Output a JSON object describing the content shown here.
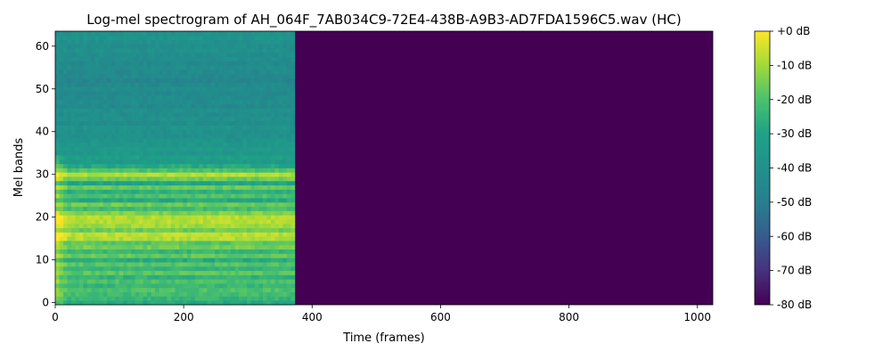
{
  "chart_data": {
    "type": "heatmap",
    "title": "Log-mel spectrogram of AH_064F_7AB034C9-72E4-438B-A9B3-AD7FDA1596C5.wav (HC)",
    "xlabel": "Time (frames)",
    "ylabel": "Mel bands",
    "xlim": [
      0,
      1024
    ],
    "ylim": [
      -0.5,
      63.5
    ],
    "x_ticks": [
      0,
      200,
      400,
      600,
      800,
      1000
    ],
    "x_tick_labels": [
      "0",
      "200",
      "400",
      "600",
      "800",
      "1000"
    ],
    "y_ticks": [
      0,
      10,
      20,
      30,
      40,
      50,
      60
    ],
    "y_tick_labels": [
      "0",
      "10",
      "20",
      "30",
      "40",
      "50",
      "60"
    ],
    "n_mel_bands": 64,
    "n_frames": 1024,
    "signal_end_frame": 373,
    "fill_value_db": -80,
    "colormap": "viridis",
    "colorbar": {
      "range_db": [
        -80,
        0
      ],
      "tick_values": [
        0,
        -10,
        -20,
        -30,
        -40,
        -50,
        -60,
        -70,
        -80
      ],
      "tick_labels": [
        "+0 dB",
        "-10 dB",
        "-20 dB",
        "-30 dB",
        "-40 dB",
        "-50 dB",
        "-60 dB",
        "-70 dB",
        "-80 dB"
      ]
    },
    "band_energy_profile_db": [
      -28,
      -24,
      -22,
      -20,
      -24,
      -20,
      -25,
      -18,
      -24,
      -19,
      -27,
      -17,
      -24,
      -15,
      -18,
      -8,
      -7,
      -16,
      -10,
      -8,
      -8,
      -14,
      -22,
      -16,
      -28,
      -20,
      -26,
      -17,
      -30,
      -16,
      -8,
      -20,
      -28,
      -34,
      -32,
      -36,
      -34,
      -36,
      -38,
      -40,
      -40,
      -38,
      -42,
      -40,
      -42,
      -40,
      -44,
      -42,
      -43,
      -44,
      -42,
      -44,
      -46,
      -44,
      -44,
      -42,
      -44,
      -42,
      -42,
      -40,
      -42,
      -40,
      -38,
      -40
    ]
  }
}
